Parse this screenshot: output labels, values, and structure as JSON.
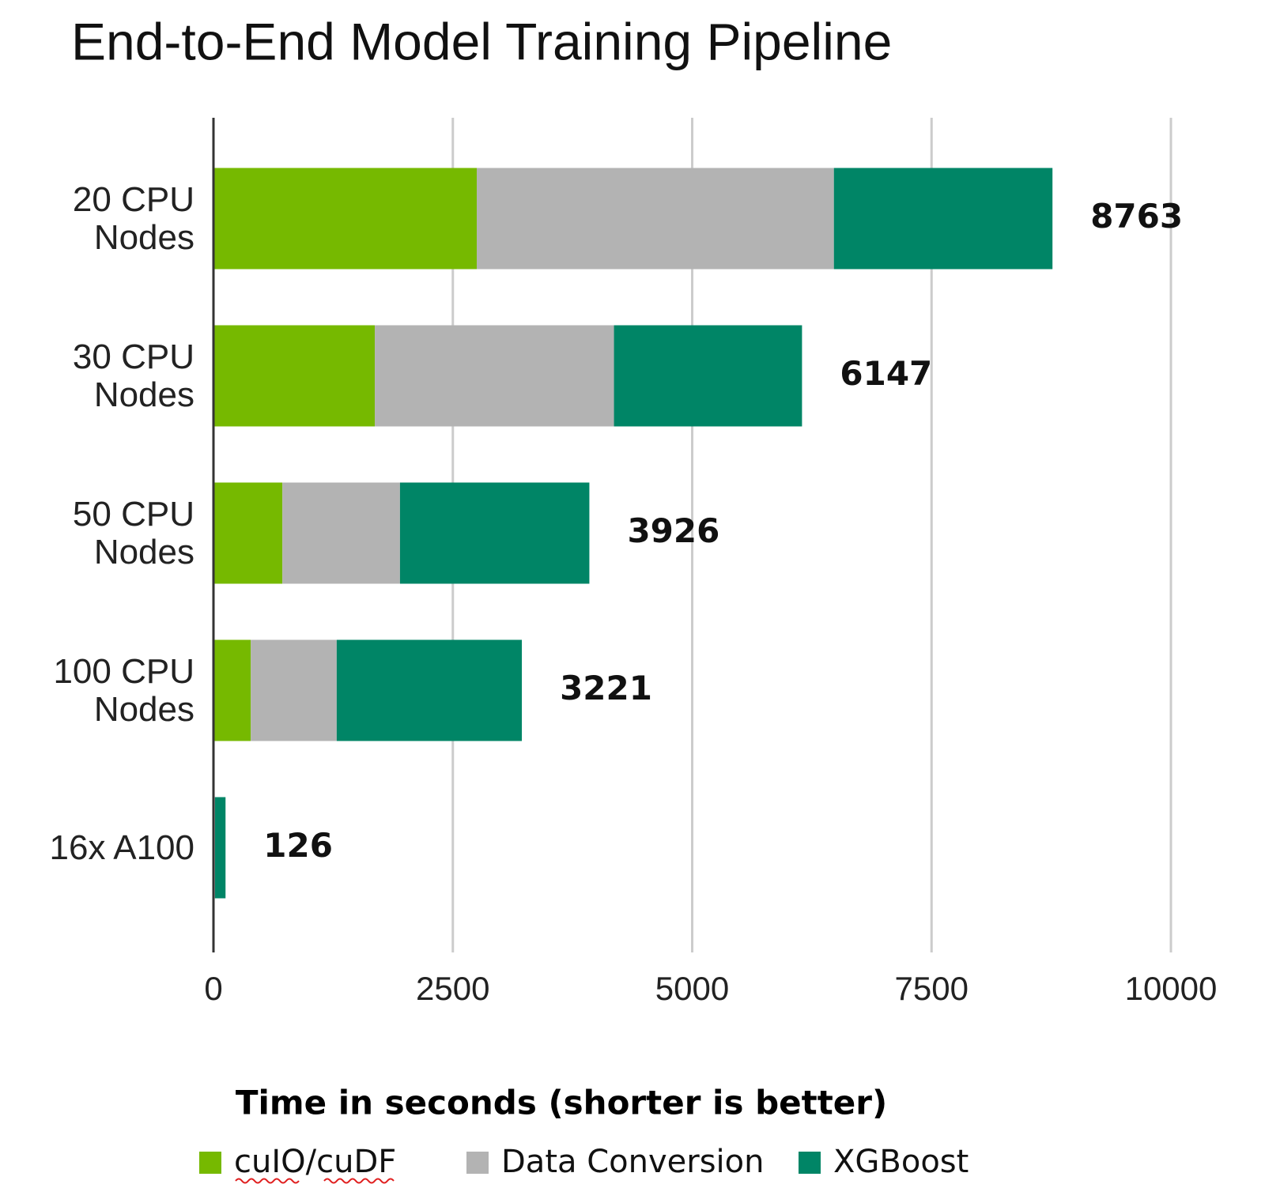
{
  "chart_data": {
    "type": "stacked_bar_horizontal",
    "title": "End-to-End Model Training Pipeline",
    "x_label": "Time in seconds (shorter is better)",
    "categories": [
      "20 CPU Nodes",
      "30 CPU Nodes",
      "50 CPU Nodes",
      "100 CPU Nodes",
      "16x A100"
    ],
    "series": [
      {
        "name": "cuIO/cuDF",
        "color": "#76b900",
        "values": [
          2750,
          1685,
          720,
          390,
          10
        ]
      },
      {
        "name": "Data Conversion",
        "color": "#b3b3b3",
        "values": [
          3730,
          2498,
          1228,
          897,
          6
        ]
      },
      {
        "name": "XGBoost",
        "color": "#008566",
        "values": [
          2283,
          1964,
          1978,
          1934,
          110
        ]
      }
    ],
    "totals": [
      8763,
      6147,
      3926,
      3221,
      126
    ],
    "xlim": [
      0,
      10000
    ],
    "xticks": [
      0,
      2500,
      5000,
      7500,
      10000
    ],
    "grid": true,
    "legend": "bottom"
  }
}
